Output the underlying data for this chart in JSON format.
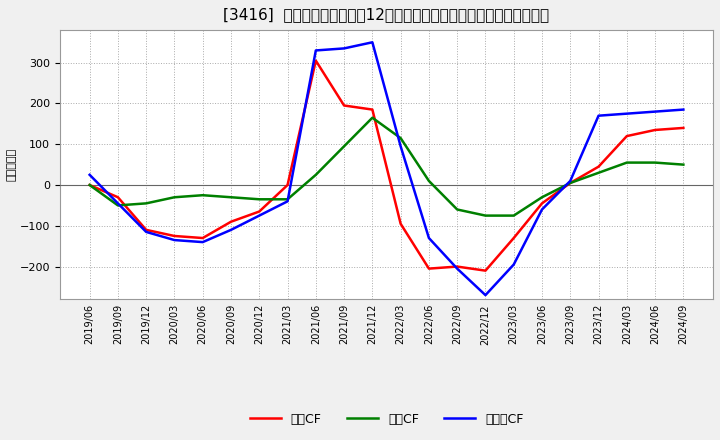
{
  "title": "[3416]  キャッシュフローの12か月移動合計の対前年同期増減額の推移",
  "ylabel": "（百万円）",
  "x_labels": [
    "2019/06",
    "2019/09",
    "2019/12",
    "2020/03",
    "2020/06",
    "2020/09",
    "2020/12",
    "2021/03",
    "2021/06",
    "2021/09",
    "2021/12",
    "2022/03",
    "2022/06",
    "2022/09",
    "2022/12",
    "2023/03",
    "2023/06",
    "2023/09",
    "2023/12",
    "2024/03",
    "2024/06",
    "2024/09"
  ],
  "eigyo_cf": [
    0,
    -30,
    -110,
    -125,
    -130,
    -90,
    -65,
    0,
    305,
    195,
    185,
    -95,
    -205,
    -200,
    -210,
    -130,
    -45,
    5,
    45,
    120,
    135,
    140
  ],
  "toshi_cf": [
    0,
    -50,
    -45,
    -30,
    -25,
    -30,
    -35,
    -35,
    25,
    95,
    165,
    115,
    10,
    -60,
    -75,
    -75,
    -30,
    5,
    30,
    55,
    55,
    50
  ],
  "free_cf": [
    25,
    -45,
    -115,
    -135,
    -140,
    -110,
    -75,
    -40,
    330,
    335,
    350,
    95,
    -130,
    -205,
    -270,
    -195,
    -60,
    10,
    170,
    175,
    180,
    185
  ],
  "line_colors": [
    "#ff0000",
    "#008000",
    "#0000ff"
  ],
  "legend_labels": [
    "営業CF",
    "投資CF",
    "フリーCF"
  ],
  "ylim": [
    -280,
    380
  ],
  "yticks": [
    -200,
    -100,
    0,
    100,
    200,
    300
  ],
  "bg_color": "#f0f0f0",
  "plot_bg_color": "#ffffff",
  "grid_color": "#aaaaaa",
  "title_fontsize": 11,
  "zero_line_color": "#666666"
}
